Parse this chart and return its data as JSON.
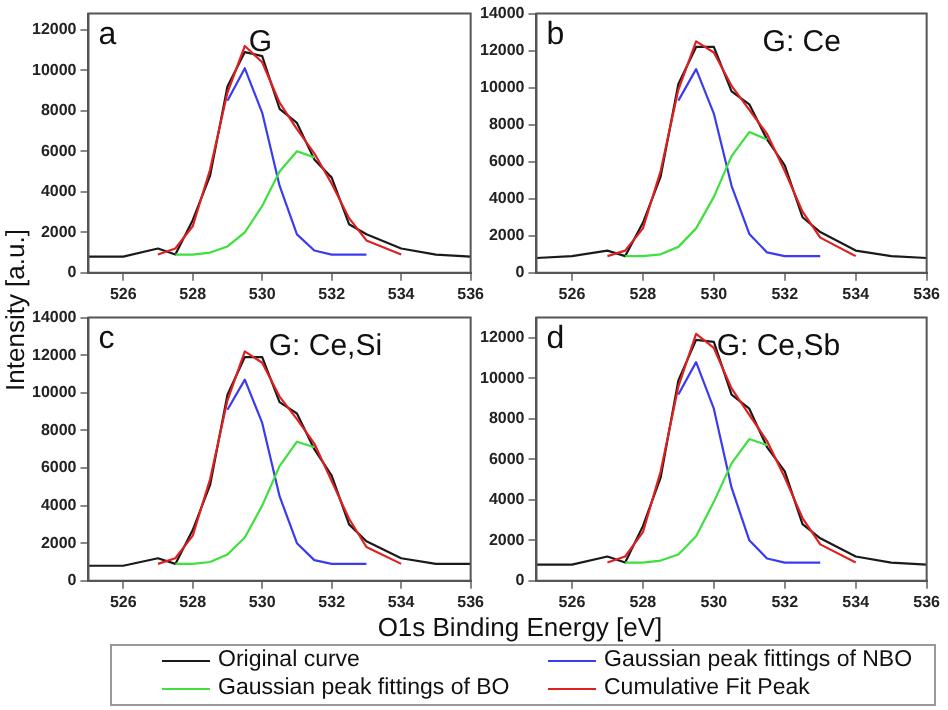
{
  "chart_data": [
    {
      "type": "line",
      "title": "G",
      "annotations": [
        "a"
      ],
      "ylabel": "Intensity [a.u.]",
      "xlabel": "O1s Binding Energy [eV]",
      "legend": "bottom",
      "xlim": [
        525,
        536
      ],
      "xticks": [
        526,
        528,
        530,
        532,
        534,
        536
      ],
      "ylim": [
        0,
        12800
      ],
      "yticks": [
        0,
        2000,
        4000,
        6000,
        8000,
        10000,
        12000
      ],
      "x": [
        525,
        526,
        527,
        527.5,
        528,
        528.5,
        529,
        529.5,
        530,
        530.5,
        531,
        531.5,
        532,
        532.5,
        533,
        534,
        535,
        536
      ],
      "series": [
        {
          "name": "Original curve",
          "color": "#1a1a1a",
          "values": [
            800,
            800,
            1200,
            900,
            2600,
            4800,
            9200,
            10900,
            10700,
            8100,
            7400,
            5600,
            4700,
            2400,
            1900,
            1200,
            900,
            800
          ]
        },
        {
          "name": "Gaussian peak fittings of NBO",
          "color": "#3b3bf0",
          "values": [
            null,
            null,
            null,
            null,
            null,
            null,
            8500,
            10100,
            7900,
            4300,
            1900,
            1100,
            900,
            900,
            900,
            null,
            null,
            null
          ]
        },
        {
          "name": "Gaussian peak fittings of BO",
          "color": "#3de03d",
          "values": [
            null,
            null,
            null,
            900,
            900,
            1000,
            1300,
            2000,
            3300,
            5000,
            6000,
            5700,
            null,
            null,
            null,
            null,
            null,
            null
          ]
        },
        {
          "name": "Cumulative Fit Peak",
          "color": "#e02020",
          "values": [
            null,
            null,
            900,
            1200,
            2300,
            5100,
            8900,
            11200,
            10400,
            8400,
            7100,
            5900,
            4400,
            2700,
            1600,
            900,
            null,
            null
          ]
        }
      ]
    },
    {
      "type": "line",
      "title": "G: Ce",
      "annotations": [
        "b"
      ],
      "xlim": [
        525,
        536
      ],
      "xticks": [
        526,
        528,
        530,
        532,
        534,
        536
      ],
      "ylim": [
        0,
        14000
      ],
      "yticks": [
        0,
        2000,
        4000,
        6000,
        8000,
        10000,
        12000,
        14000
      ],
      "x": [
        525,
        526,
        527,
        527.5,
        528,
        528.5,
        529,
        529.5,
        530,
        530.5,
        531,
        531.5,
        532,
        532.5,
        533,
        534,
        535,
        536
      ],
      "series": [
        {
          "color": "#1a1a1a",
          "values": [
            800,
            900,
            1200,
            900,
            2700,
            5200,
            10200,
            12200,
            12200,
            9800,
            9100,
            7200,
            5800,
            3000,
            2200,
            1200,
            900,
            800
          ]
        },
        {
          "color": "#3b3bf0",
          "values": [
            null,
            null,
            null,
            null,
            null,
            null,
            9300,
            11000,
            8600,
            4700,
            2100,
            1100,
            900,
            900,
            900,
            null,
            null,
            null
          ]
        },
        {
          "color": "#3de03d",
          "values": [
            null,
            null,
            null,
            900,
            900,
            1000,
            1400,
            2400,
            4100,
            6300,
            7600,
            7200,
            null,
            null,
            null,
            null,
            null,
            null
          ]
        },
        {
          "color": "#e02020",
          "values": [
            null,
            null,
            900,
            1200,
            2400,
            5500,
            9900,
            12500,
            11900,
            10100,
            8800,
            7500,
            5500,
            3300,
            1900,
            900,
            null,
            null
          ]
        }
      ]
    },
    {
      "type": "line",
      "title": "G: Ce,Si",
      "annotations": [
        "c"
      ],
      "xlim": [
        525,
        536
      ],
      "xticks": [
        526,
        528,
        530,
        532,
        534,
        536
      ],
      "ylim": [
        0,
        14000
      ],
      "yticks": [
        0,
        2000,
        4000,
        6000,
        8000,
        10000,
        12000,
        14000
      ],
      "x": [
        525,
        526,
        527,
        527.5,
        528,
        528.5,
        529,
        529.5,
        530,
        530.5,
        531,
        531.5,
        532,
        532.5,
        533,
        534,
        535,
        536
      ],
      "series": [
        {
          "color": "#1a1a1a",
          "values": [
            800,
            800,
            1200,
            900,
            2700,
            5100,
            9900,
            11900,
            11900,
            9500,
            8900,
            7000,
            5600,
            3000,
            2100,
            1200,
            900,
            900
          ]
        },
        {
          "color": "#3b3bf0",
          "values": [
            null,
            null,
            null,
            null,
            null,
            null,
            9100,
            10700,
            8400,
            4500,
            2000,
            1100,
            900,
            900,
            900,
            null,
            null,
            null
          ]
        },
        {
          "color": "#3de03d",
          "values": [
            null,
            null,
            null,
            900,
            900,
            1000,
            1400,
            2300,
            4000,
            6100,
            7400,
            7100,
            null,
            null,
            null,
            null,
            null,
            null
          ]
        },
        {
          "color": "#e02020",
          "values": [
            null,
            null,
            900,
            1200,
            2400,
            5400,
            9600,
            12200,
            11600,
            9800,
            8600,
            7300,
            5300,
            3300,
            1800,
            900,
            null,
            null
          ]
        }
      ]
    },
    {
      "type": "line",
      "title": "G: Ce,Sb",
      "annotations": [
        "d"
      ],
      "xlim": [
        525,
        536
      ],
      "xticks": [
        526,
        528,
        530,
        532,
        534,
        536
      ],
      "ylim": [
        0,
        13000
      ],
      "yticks": [
        0,
        2000,
        4000,
        6000,
        8000,
        10000,
        12000
      ],
      "x": [
        525,
        526,
        527,
        527.5,
        528,
        528.5,
        529,
        529.5,
        530,
        530.5,
        531,
        531.5,
        532,
        532.5,
        533,
        534,
        535,
        536
      ],
      "series": [
        {
          "color": "#1a1a1a",
          "values": [
            800,
            800,
            1200,
            900,
            2700,
            5100,
            9900,
            11900,
            11800,
            9200,
            8500,
            6600,
            5400,
            2800,
            2100,
            1200,
            900,
            800
          ]
        },
        {
          "color": "#3b3bf0",
          "values": [
            null,
            null,
            null,
            null,
            null,
            null,
            9200,
            10800,
            8500,
            4600,
            2000,
            1100,
            900,
            900,
            900,
            null,
            null,
            null
          ]
        },
        {
          "color": "#3de03d",
          "values": [
            null,
            null,
            null,
            900,
            900,
            1000,
            1300,
            2200,
            3900,
            5800,
            7000,
            6700,
            null,
            null,
            null,
            null,
            null,
            null
          ]
        },
        {
          "color": "#e02020",
          "values": [
            null,
            null,
            900,
            1200,
            2400,
            5400,
            9600,
            12200,
            11500,
            9500,
            8200,
            6900,
            5100,
            3100,
            1800,
            900,
            null,
            null
          ]
        }
      ]
    }
  ]
}
